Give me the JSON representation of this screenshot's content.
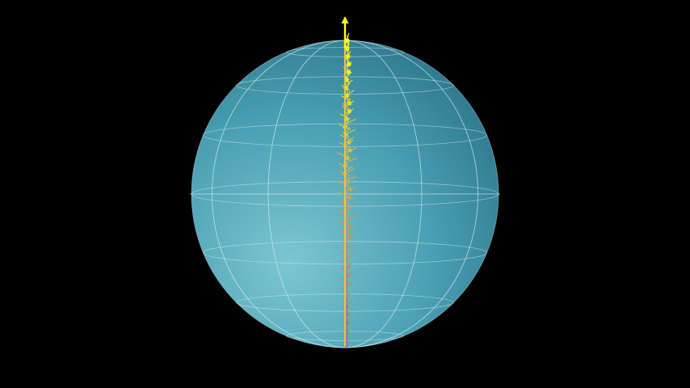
{
  "scene": {
    "background_color": "#000000",
    "sphere": {
      "fill_light": "#7cc6d2",
      "fill_mid": "#4a9fb2",
      "fill_dark": "#2b7389",
      "grid_color": "#d4eef3",
      "latitude_lines": 7,
      "longitude_lines": 12
    },
    "vector_trail": {
      "color_start": "#a8659e",
      "color_mid": "#c9a566",
      "color_end": "#ffff1a",
      "arrow_color": "#ffff1a",
      "steps": 120,
      "orientation": "north-pole"
    }
  }
}
